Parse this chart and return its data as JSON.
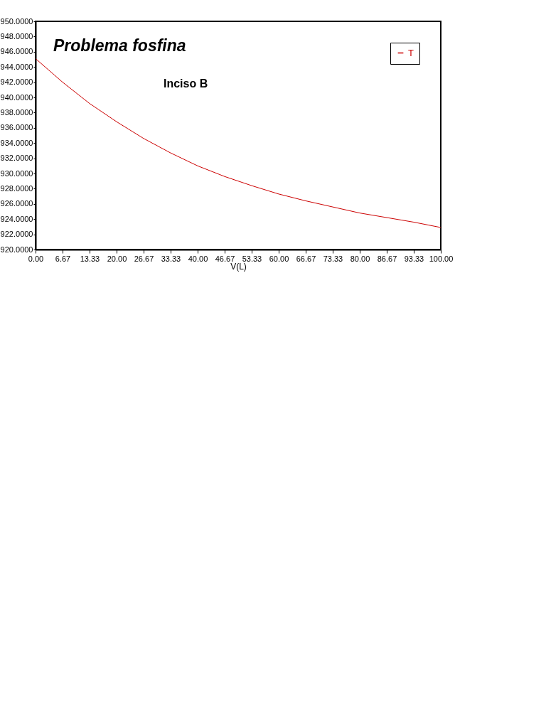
{
  "chart_data": {
    "type": "line",
    "title": "Problema fosfina",
    "subtitle": "Inciso B",
    "xlabel": "V(L)",
    "x": [
      0,
      6.67,
      13.33,
      20,
      26.67,
      33.33,
      40,
      46.67,
      53.33,
      60,
      66.67,
      73.33,
      80,
      86.67,
      93.33,
      100
    ],
    "series": [
      {
        "name": "T",
        "color": "#cc0000",
        "values": [
          945.1,
          942.0,
          939.2,
          936.8,
          934.6,
          932.7,
          931.0,
          929.6,
          928.4,
          927.3,
          926.4,
          925.6,
          924.8,
          924.2,
          923.6,
          922.9
        ]
      }
    ],
    "xlim": [
      0,
      100
    ],
    "xticks": [
      {
        "value": 0,
        "label": "0.00"
      },
      {
        "value": 6.67,
        "label": "6.67"
      },
      {
        "value": 13.33,
        "label": "13.33"
      },
      {
        "value": 20,
        "label": "20.00"
      },
      {
        "value": 26.67,
        "label": "26.67"
      },
      {
        "value": 33.33,
        "label": "33.33"
      },
      {
        "value": 40,
        "label": "40.00"
      },
      {
        "value": 46.67,
        "label": "46.67"
      },
      {
        "value": 53.33,
        "label": "53.33"
      },
      {
        "value": 60,
        "label": "60.00"
      },
      {
        "value": 66.67,
        "label": "66.67"
      },
      {
        "value": 73.33,
        "label": "73.33"
      },
      {
        "value": 80,
        "label": "80.00"
      },
      {
        "value": 86.67,
        "label": "86.67"
      },
      {
        "value": 93.33,
        "label": "93.33"
      },
      {
        "value": 100,
        "label": "100.00"
      }
    ],
    "ylim": [
      920,
      950
    ],
    "yticks": [
      {
        "value": 920,
        "label": "920.0000"
      },
      {
        "value": 922,
        "label": "922.0000"
      },
      {
        "value": 924,
        "label": "924.0000"
      },
      {
        "value": 926,
        "label": "926.0000"
      },
      {
        "value": 928,
        "label": "928.0000"
      },
      {
        "value": 930,
        "label": "930.0000"
      },
      {
        "value": 932,
        "label": "932.0000"
      },
      {
        "value": 934,
        "label": "934.0000"
      },
      {
        "value": 936,
        "label": "936.0000"
      },
      {
        "value": 938,
        "label": "938.0000"
      },
      {
        "value": 940,
        "label": "940.0000"
      },
      {
        "value": 942,
        "label": "942.0000"
      },
      {
        "value": 944,
        "label": "944.0000"
      },
      {
        "value": 946,
        "label": "946.0000"
      },
      {
        "value": 948,
        "label": "948.0000"
      },
      {
        "value": 950,
        "label": "950.0000"
      }
    ],
    "grid": false,
    "legend": "top right"
  }
}
